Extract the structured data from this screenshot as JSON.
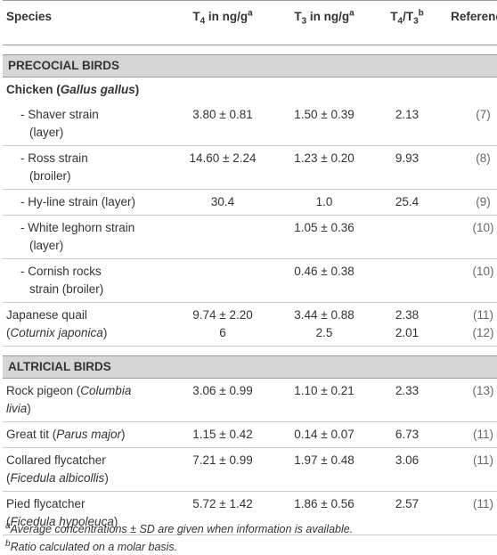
{
  "header": [
    [
      "Species"
    ],
    [
      "T",
      {
        "text": "4",
        "style": "sub"
      },
      " in ng/g",
      {
        "text": "a",
        "style": "sup"
      }
    ],
    [
      "T",
      {
        "text": "3",
        "style": "sub"
      },
      " in ng/g",
      {
        "text": "a",
        "style": "sup"
      }
    ],
    [
      "T",
      {
        "text": "4",
        "style": "sub"
      },
      "/T",
      {
        "text": "3",
        "style": "sub"
      },
      {
        "text": "b",
        "style": "sup"
      }
    ],
    [
      "References"
    ]
  ],
  "sections": [
    {
      "title": "PRECOCIAL BIRDS",
      "rows": [
        {
          "group": [
            "Chicken (",
            {
              "text": "Gallus gallus",
              "style": "italic"
            },
            ")"
          ]
        },
        {
          "indent": true,
          "species": [
            [
              "- Shaver strain"
            ],
            [
              "(layer)"
            ]
          ],
          "t4": [
            "3.80 ± 0.81"
          ],
          "t3": [
            "1.50 ± 0.39"
          ],
          "ratio": [
            "2.13"
          ],
          "ref": [
            "(7)"
          ]
        },
        {
          "indent": true,
          "species": [
            [
              "- Ross strain"
            ],
            [
              "(broiler)"
            ]
          ],
          "t4": [
            "14.60 ± 2.24"
          ],
          "t3": [
            "1.23 ± 0.20"
          ],
          "ratio": [
            "9.93"
          ],
          "ref": [
            "(8)"
          ]
        },
        {
          "indent": true,
          "species": [
            [
              "- Hy-line strain (layer)"
            ]
          ],
          "t4": [
            "30.4"
          ],
          "t3": [
            "1.0"
          ],
          "ratio": [
            "25.4"
          ],
          "ref": [
            "(9)"
          ]
        },
        {
          "indent": true,
          "species": [
            [
              "- White leghorn strain"
            ],
            [
              "(layer)"
            ]
          ],
          "t3": [
            "1.05 ± 0.36"
          ],
          "ref": [
            "(10)"
          ]
        },
        {
          "indent": true,
          "species": [
            [
              "- Cornish rocks"
            ],
            [
              "strain (broiler)"
            ]
          ],
          "t3": [
            "0.46 ± 0.38"
          ],
          "ref": [
            "(10)"
          ]
        },
        {
          "species": [
            [
              "Japanese quail"
            ],
            [
              "(",
              {
                "text": "Coturnix japonica",
                "style": "italic"
              },
              ")"
            ]
          ],
          "t4": [
            "9.74 ± 2.20",
            "6"
          ],
          "t3": [
            "3.44 ± 0.88",
            "2.5"
          ],
          "ratio": [
            "2.38",
            "2.01"
          ],
          "ref": [
            "(11)",
            "(12)"
          ]
        }
      ]
    },
    {
      "title": "ALTRICIAL BIRDS",
      "rows": [
        {
          "species": [
            [
              "Rock pigeon (",
              {
                "text": "Columbia",
                "style": "italic"
              }
            ],
            [
              {
                "text": "livia",
                "style": "italic"
              },
              ")"
            ]
          ],
          "t4": [
            "3.06 ± 0.99"
          ],
          "t3": [
            "1.10 ± 0.21"
          ],
          "ratio": [
            "2.33"
          ],
          "ref": [
            "(13)"
          ]
        },
        {
          "species": [
            [
              "Great tit (",
              {
                "text": "Parus major",
                "style": "italic"
              },
              ")"
            ]
          ],
          "t4": [
            "1.15 ± 0.42"
          ],
          "t3": [
            "0.14 ± 0.07"
          ],
          "ratio": [
            "6.73"
          ],
          "ref": [
            "(11)"
          ]
        },
        {
          "species": [
            [
              "Collared flycatcher"
            ],
            [
              "(",
              {
                "text": "Ficedula albicollis",
                "style": "italic"
              },
              ")"
            ]
          ],
          "t4": [
            "7.21 ± 0.99"
          ],
          "t3": [
            "1.97 ± 0.48"
          ],
          "ratio": [
            "3.06"
          ],
          "ref": [
            "(11)"
          ]
        },
        {
          "species": [
            [
              "Pied flycatcher"
            ],
            [
              "(",
              {
                "text": "Ficedula hypoleuca",
                "style": "italic"
              },
              ")"
            ]
          ],
          "t4": [
            "5.72 ± 1.42"
          ],
          "t3": [
            "1.86 ± 0.56"
          ],
          "ratio": [
            "2.57"
          ],
          "ref": [
            "(11)"
          ]
        }
      ]
    }
  ],
  "footnotes": [
    [
      {
        "text": "a",
        "style": "sup"
      },
      "Average concentrations ± SD are given when information is available."
    ],
    [
      {
        "text": "b",
        "style": "sup"
      },
      "Ratio calculated on a molar basis."
    ]
  ]
}
